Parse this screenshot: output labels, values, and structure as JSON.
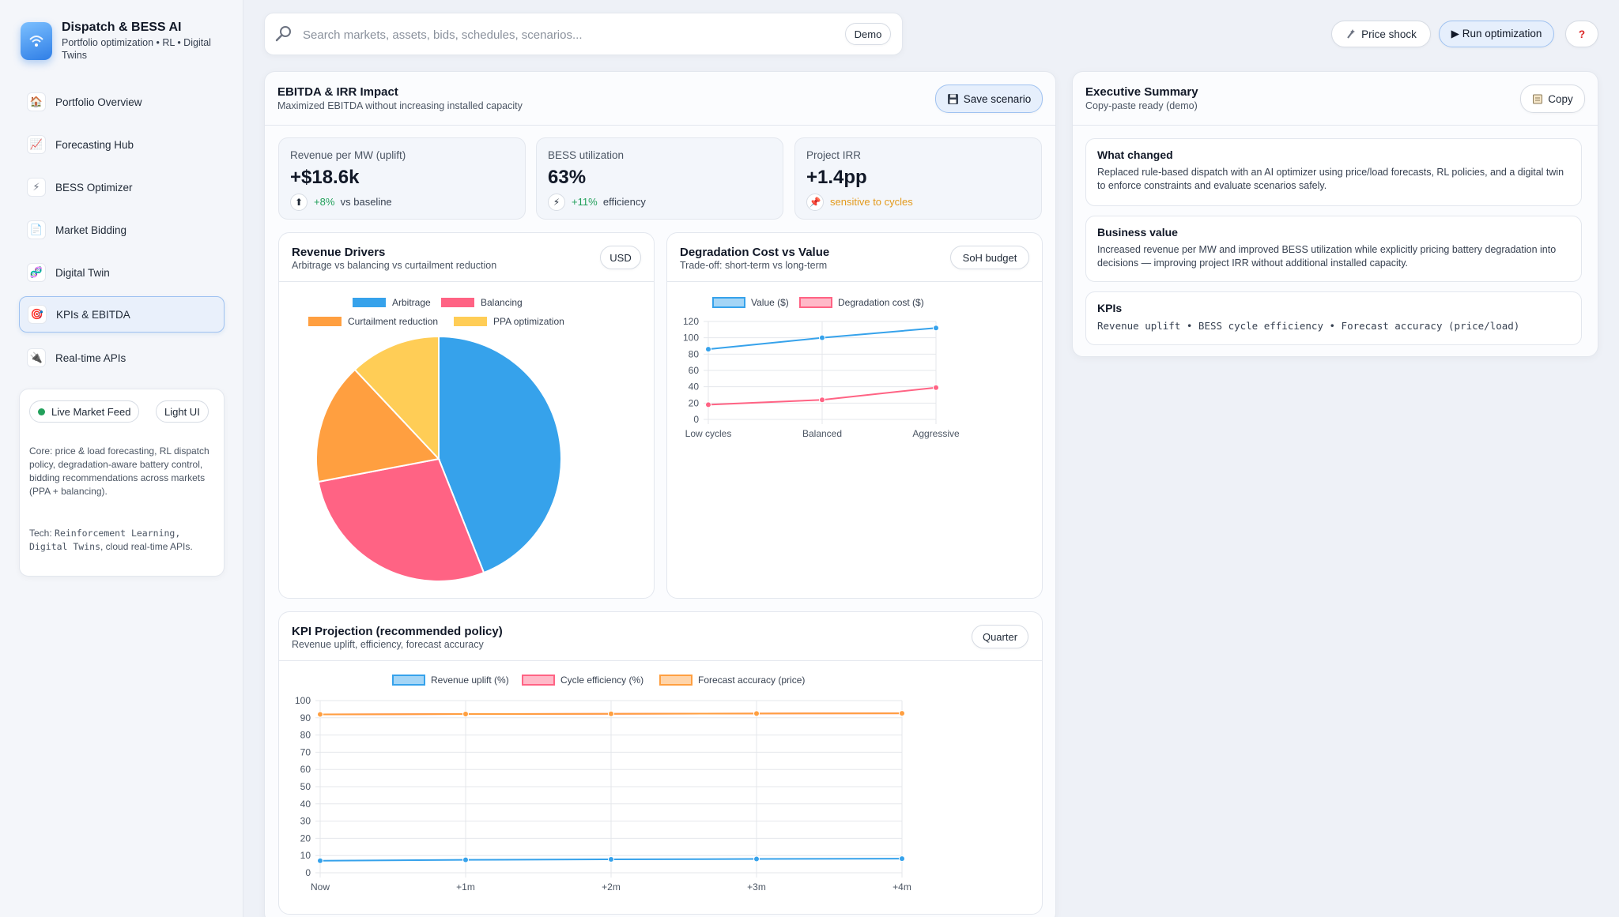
{
  "app": {
    "title": "Dispatch & BESS AI",
    "subtitle": "Portfolio optimization • RL • Digital Twins"
  },
  "sidebar": {
    "items": [
      {
        "label": "Portfolio Overview",
        "icon": "🏠"
      },
      {
        "label": "Forecasting Hub",
        "icon": "📈"
      },
      {
        "label": "BESS Optimizer",
        "icon": "⚡"
      },
      {
        "label": "Market Bidding",
        "icon": "📄"
      },
      {
        "label": "Digital Twin",
        "icon": "🧬"
      },
      {
        "label": "KPIs & EBITDA",
        "icon": "🎯"
      },
      {
        "label": "Real-time APIs",
        "icon": "🔌"
      }
    ],
    "active_index": 5,
    "card": {
      "live_feed_label": "Live Market Feed",
      "light_ui_label": "Light UI",
      "core_text": "Core: price & load forecasting, RL dispatch policy, degradation-aware battery control, bidding recommendations across markets (PPA + balancing).",
      "tech_prefix": "Tech: ",
      "tech_mono": "Reinforcement Learning, Digital Twins",
      "tech_suffix": ", cloud real-time APIs."
    }
  },
  "topbar": {
    "search_placeholder": "Search markets, assets, bids, schedules, scenarios...",
    "demo_label": "Demo",
    "price_shock_label": "Price shock",
    "run_label": "▶ Run optimization",
    "help_label": "?"
  },
  "impact": {
    "title": "EBITDA & IRR Impact",
    "subtitle": "Maximized EBITDA without increasing installed capacity",
    "save_label": "Save scenario",
    "kpis": [
      {
        "label": "Revenue per MW (uplift)",
        "value": "+$18.6k",
        "icon": "⬆",
        "delta": "+8%",
        "delta_color": "#22a05b",
        "note": "vs baseline"
      },
      {
        "label": "BESS utilization",
        "value": "63%",
        "icon": "⚡",
        "delta": "+11%",
        "delta_color": "#22a05b",
        "note": "efficiency"
      },
      {
        "label": "Project IRR",
        "value": "+1.4pp",
        "icon": "📌",
        "delta": "sensitive to cycles",
        "delta_color": "#e39a1c",
        "note": ""
      }
    ]
  },
  "revenue_drivers": {
    "title": "Revenue Drivers",
    "subtitle": "Arbitrage vs balancing vs curtailment reduction",
    "button": "USD"
  },
  "degradation": {
    "title": "Degradation Cost vs Value",
    "subtitle": "Trade-off: short-term vs long-term",
    "button": "SoH budget"
  },
  "projection": {
    "title": "KPI Projection (recommended policy)",
    "subtitle": "Revenue uplift, efficiency, forecast accuracy",
    "button": "Quarter"
  },
  "executive": {
    "title": "Executive Summary",
    "subtitle": "Copy-paste ready (demo)",
    "copy_label": "Copy",
    "blocks": [
      {
        "title": "What changed",
        "text": "Replaced rule-based dispatch with an AI optimizer using price/load forecasts, RL policies, and a digital twin to enforce constraints and evaluate scenarios safely."
      },
      {
        "title": "Business value",
        "text": "Increased revenue per MW and improved BESS utilization while explicitly pricing battery degradation into decisions — improving project IRR without additional installed capacity."
      },
      {
        "title": "KPIs",
        "text": "Revenue uplift • BESS cycle efficiency • Forecast accuracy (price/load)"
      }
    ]
  },
  "chart_data": [
    {
      "type": "pie",
      "categories": [
        "Arbitrage",
        "Balancing",
        "Curtailment reduction",
        "PPA optimization"
      ],
      "values": [
        44,
        28,
        16,
        12
      ],
      "colors": [
        "#36a2eb",
        "#ff6384",
        "#ff9f40",
        "#ffcd56"
      ]
    },
    {
      "type": "line",
      "categories": [
        "Low cycles",
        "Balanced",
        "Aggressive"
      ],
      "ylim": [
        0,
        120
      ],
      "yticks": [
        0,
        20,
        40,
        60,
        80,
        100,
        120
      ],
      "series": [
        {
          "name": "Value ($)",
          "values": [
            86,
            100,
            112
          ],
          "color": "#36a2eb"
        },
        {
          "name": "Degradation cost ($)",
          "values": [
            18,
            24,
            39
          ],
          "color": "#ff6384"
        }
      ]
    },
    {
      "type": "line",
      "categories": [
        "Now",
        "+1m",
        "+2m",
        "+3m",
        "+4m"
      ],
      "ylim": [
        0,
        100
      ],
      "yticks": [
        0,
        10,
        20,
        30,
        40,
        50,
        60,
        70,
        80,
        90,
        100
      ],
      "series": [
        {
          "name": "Revenue uplift (%)",
          "values": [
            7,
            7.5,
            7.8,
            8,
            8.2
          ],
          "color": "#36a2eb"
        },
        {
          "name": "Cycle efficiency (%)",
          "values": [
            92,
            92.2,
            92.3,
            92.5,
            92.6
          ],
          "color": "#ff6384"
        },
        {
          "name": "Forecast accuracy (price)",
          "values": [
            92,
            92.2,
            92.3,
            92.5,
            92.6
          ],
          "color": "#ff9f40"
        }
      ]
    }
  ]
}
